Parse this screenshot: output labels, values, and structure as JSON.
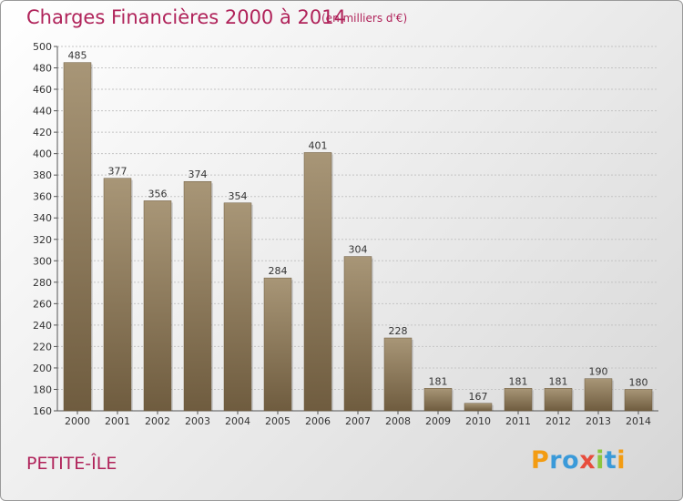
{
  "title": "Charges Financières 2000 à 2014",
  "subtitle": "(en milliers d'€)",
  "location": "PETITE-ÎLE",
  "logo": {
    "text": "Proxiti",
    "letters": [
      {
        "char": "P",
        "color": "#f39c12"
      },
      {
        "char": "r",
        "color": "#3a9ad9"
      },
      {
        "char": "o",
        "color": "#3a9ad9"
      },
      {
        "char": "x",
        "color": "#e74c3c"
      },
      {
        "char": "i",
        "color": "#8cc63f"
      },
      {
        "char": "t",
        "color": "#3a9ad9"
      },
      {
        "char": "i",
        "color": "#f39c12"
      }
    ]
  },
  "colors": {
    "bar_top": "#a89677",
    "bar_bottom": "#6f5c3f",
    "title": "#b0235a"
  },
  "chart_data": {
    "type": "bar",
    "categories": [
      "2000",
      "2001",
      "2002",
      "2003",
      "2004",
      "2005",
      "2006",
      "2007",
      "2008",
      "2009",
      "2010",
      "2011",
      "2012",
      "2013",
      "2014"
    ],
    "values": [
      485,
      377,
      356,
      374,
      354,
      284,
      401,
      304,
      228,
      181,
      167,
      181,
      181,
      190,
      180
    ],
    "ylim": [
      160,
      500
    ],
    "yticks": [
      160,
      180,
      200,
      220,
      240,
      260,
      280,
      300,
      320,
      340,
      360,
      380,
      400,
      420,
      440,
      460,
      480,
      500
    ],
    "grid": true
  }
}
